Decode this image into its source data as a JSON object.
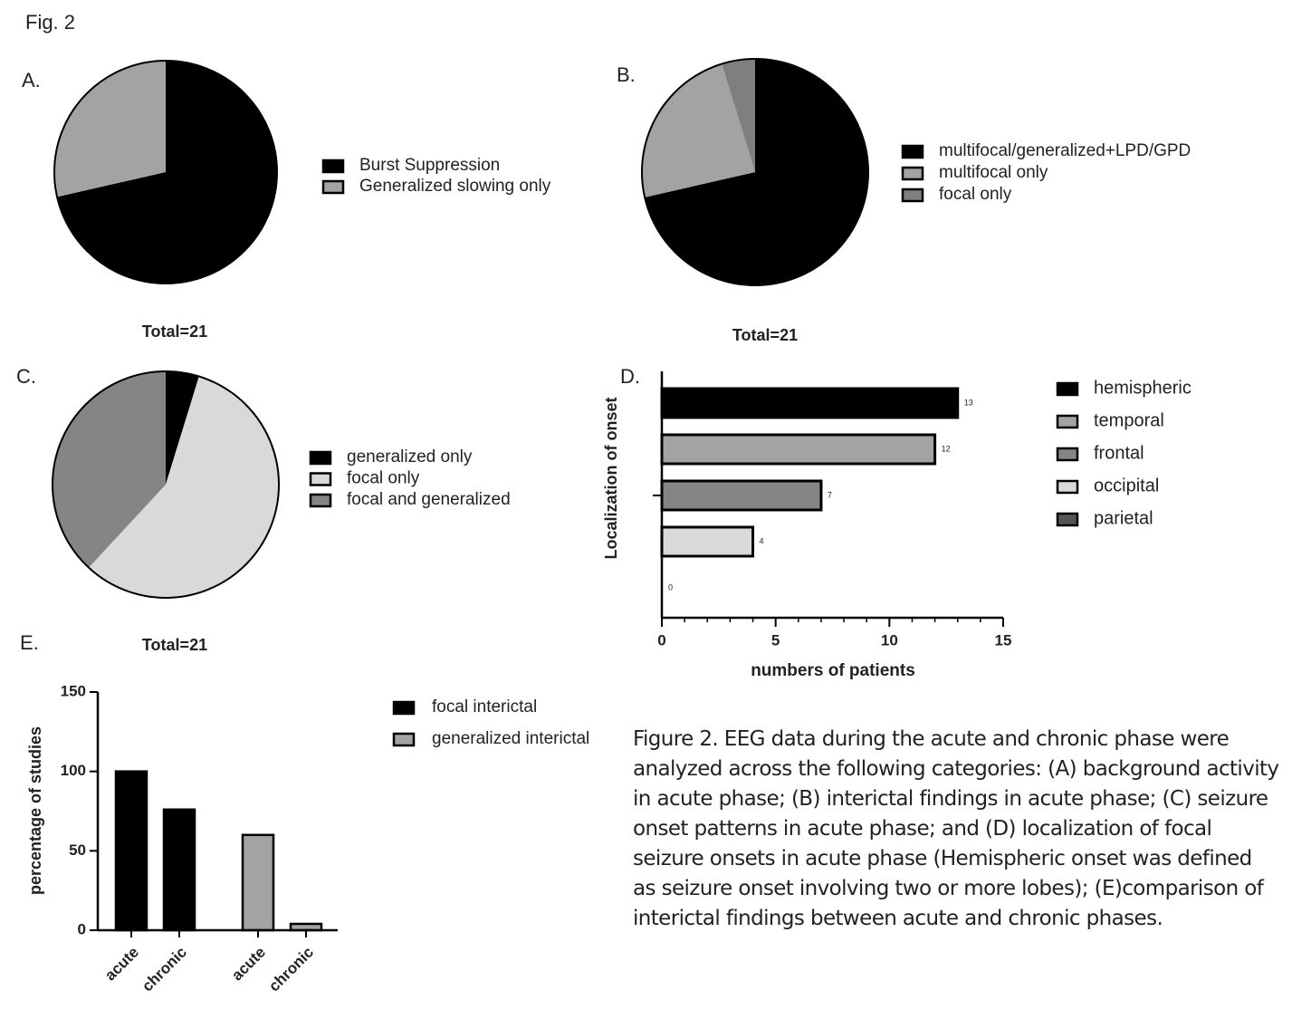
{
  "figure_label": "Fig. 2",
  "caption": "Figure 2. EEG data during the acute and chronic phase were analyzed across the following categories: (A) background activity in acute phase; (B) interictal findings in acute phase; (C) seizure onset patterns in acute phase; and (D) localization of focal seizure onsets in acute phase (Hemispheric onset was defined as seizure onset involving two or more lobes); (E)comparison of interictal findings between acute and chronic phases.",
  "chart_data": [
    {
      "type": "pie",
      "panel": "A.",
      "note": "Total=21",
      "categories": [
        "Burst Suppression",
        "Generalized slowing only"
      ],
      "values": [
        15,
        6
      ],
      "colors": [
        "#000000",
        "#a3a3a6"
      ]
    },
    {
      "type": "pie",
      "panel": "B.",
      "note": "Total=21",
      "categories": [
        "multifocal/generalized+LPD/GPD",
        "multifocal only",
        "focal only"
      ],
      "values": [
        15,
        5,
        1
      ],
      "colors": [
        "#000000",
        "#a3a3a6",
        "#7f7f7f"
      ]
    },
    {
      "type": "pie",
      "panel": "C.",
      "note": "Total=21",
      "categories": [
        "generalized only",
        "focal only",
        "focal and generalized"
      ],
      "values": [
        1,
        12,
        8
      ],
      "colors": [
        "#000000",
        "#d9d9d9",
        "#858585"
      ]
    },
    {
      "type": "hbar",
      "panel": "D.",
      "x_label": "numbers of patients",
      "y_label": "Localization of onset",
      "categories": [
        "hemispheric",
        "temporal",
        "frontal",
        "occipital",
        "parietal"
      ],
      "values": [
        13,
        12,
        7,
        4,
        0
      ],
      "colors": [
        "#000000",
        "#a3a3a6",
        "#858585",
        "#d9d9d9",
        "#555555"
      ],
      "xlim": [
        0,
        15
      ],
      "xticks": [
        0,
        5,
        10,
        15
      ]
    },
    {
      "type": "grouped_bar",
      "panel": "E.",
      "y_label": "percentage of studies",
      "categories": [
        "acute",
        "chronic"
      ],
      "series": [
        {
          "name": "focal interictal",
          "color": "#000000",
          "values": [
            100,
            76
          ]
        },
        {
          "name": "generalized interictal",
          "color": "#a3a3a6",
          "values": [
            60,
            4
          ]
        }
      ],
      "ylim": [
        0,
        150
      ],
      "yticks": [
        0,
        50,
        100,
        150
      ]
    }
  ]
}
